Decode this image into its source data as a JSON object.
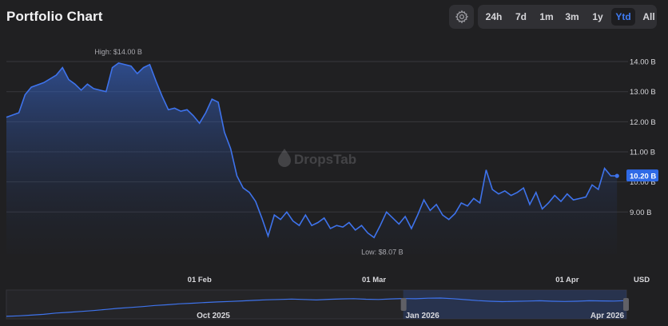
{
  "header": {
    "title": "Portfolio Chart",
    "settings_icon": "gear-icon",
    "ranges": [
      {
        "label": "24h",
        "active": false
      },
      {
        "label": "7d",
        "active": false
      },
      {
        "label": "1m",
        "active": false
      },
      {
        "label": "3m",
        "active": false
      },
      {
        "label": "1y",
        "active": false
      },
      {
        "label": "Ytd",
        "active": true
      },
      {
        "label": "All",
        "active": false
      }
    ]
  },
  "watermark": {
    "text": "DropsTab",
    "icon": "drop-icon"
  },
  "chart_data": {
    "type": "area",
    "currency": "USD",
    "y_unit": "B",
    "ylim": [
      7.6,
      14.4
    ],
    "y_ticks": [
      {
        "value": 9,
        "label": "9.00 B"
      },
      {
        "value": 10,
        "label": "10.00 B"
      },
      {
        "value": 11,
        "label": "11.00 B"
      },
      {
        "value": 12,
        "label": "12.00 B"
      },
      {
        "value": 13,
        "label": "13.00 B"
      },
      {
        "value": 14,
        "label": "14.00 B"
      }
    ],
    "x_ticks": [
      {
        "day": 31,
        "label": "01 Feb"
      },
      {
        "day": 59,
        "label": "01 Mar"
      },
      {
        "day": 90,
        "label": "01 Apr"
      }
    ],
    "x_range_days": [
      0,
      99
    ],
    "series": [
      {
        "values": [
          [
            0,
            12.15
          ],
          [
            2,
            12.3
          ],
          [
            3,
            12.9
          ],
          [
            4,
            13.15
          ],
          [
            6,
            13.3
          ],
          [
            8,
            13.55
          ],
          [
            9,
            13.8
          ],
          [
            10,
            13.4
          ],
          [
            11,
            13.25
          ],
          [
            12,
            13.05
          ],
          [
            13,
            13.25
          ],
          [
            14,
            13.1
          ],
          [
            16,
            13.0
          ],
          [
            17,
            13.8
          ],
          [
            18,
            13.95
          ],
          [
            20,
            13.85
          ],
          [
            21,
            13.6
          ],
          [
            22,
            13.8
          ],
          [
            23,
            13.9
          ],
          [
            24,
            13.35
          ],
          [
            25,
            12.85
          ],
          [
            26,
            12.4
          ],
          [
            27,
            12.45
          ],
          [
            28,
            12.35
          ],
          [
            29,
            12.4
          ],
          [
            30,
            12.2
          ],
          [
            31,
            11.95
          ],
          [
            32,
            12.3
          ],
          [
            33,
            12.75
          ],
          [
            34,
            12.65
          ],
          [
            35,
            11.65
          ],
          [
            36,
            11.1
          ],
          [
            37,
            10.2
          ],
          [
            38,
            9.8
          ],
          [
            39,
            9.65
          ],
          [
            40,
            9.35
          ],
          [
            41,
            8.8
          ],
          [
            42,
            8.2
          ],
          [
            43,
            8.9
          ],
          [
            44,
            8.75
          ],
          [
            45,
            9.0
          ],
          [
            46,
            8.7
          ],
          [
            47,
            8.55
          ],
          [
            48,
            8.9
          ],
          [
            49,
            8.55
          ],
          [
            50,
            8.65
          ],
          [
            51,
            8.8
          ],
          [
            52,
            8.45
          ],
          [
            53,
            8.55
          ],
          [
            54,
            8.5
          ],
          [
            55,
            8.65
          ],
          [
            56,
            8.4
          ],
          [
            57,
            8.55
          ],
          [
            58,
            8.3
          ],
          [
            59,
            8.15
          ],
          [
            60,
            8.55
          ],
          [
            61,
            9.0
          ],
          [
            62,
            8.8
          ],
          [
            63,
            8.6
          ],
          [
            64,
            8.85
          ],
          [
            65,
            8.45
          ],
          [
            66,
            8.9
          ],
          [
            67,
            9.4
          ],
          [
            68,
            9.05
          ],
          [
            69,
            9.25
          ],
          [
            70,
            8.9
          ],
          [
            71,
            8.75
          ],
          [
            72,
            8.95
          ],
          [
            73,
            9.3
          ],
          [
            74,
            9.2
          ],
          [
            75,
            9.45
          ],
          [
            76,
            9.3
          ],
          [
            77,
            10.4
          ],
          [
            78,
            9.75
          ],
          [
            79,
            9.6
          ],
          [
            80,
            9.7
          ],
          [
            81,
            9.55
          ],
          [
            82,
            9.65
          ],
          [
            83,
            9.8
          ],
          [
            84,
            9.25
          ],
          [
            85,
            9.65
          ],
          [
            86,
            9.1
          ],
          [
            87,
            9.3
          ],
          [
            88,
            9.55
          ],
          [
            89,
            9.35
          ],
          [
            90,
            9.6
          ],
          [
            91,
            9.4
          ],
          [
            92,
            9.45
          ],
          [
            93,
            9.5
          ],
          [
            94,
            9.9
          ],
          [
            95,
            9.75
          ],
          [
            96,
            10.45
          ],
          [
            97,
            10.2
          ],
          [
            98,
            10.2
          ]
        ]
      }
    ],
    "high": {
      "label": "High: $14.00 B",
      "value": 14.0
    },
    "low": {
      "label": "Low: $8.07 B",
      "value": 8.07
    },
    "current": {
      "label": "10.20 B",
      "value": 10.2
    }
  },
  "navigator": {
    "labels": [
      "Oct 2025",
      "Jan 2026",
      "Apr 2026"
    ],
    "selected_from": "Jan 2026",
    "selected_to": "Apr 2026",
    "values": [
      1.2,
      1.5,
      2.0,
      2.6,
      3.5,
      4.0,
      4.6,
      5.2,
      6.0,
      6.8,
      7.4,
      8.0,
      8.8,
      9.3,
      10.0,
      10.4,
      10.9,
      11.3,
      11.6,
      12.0,
      12.4,
      12.8,
      13.0,
      13.3,
      13.0,
      12.7,
      13.1,
      13.4,
      13.6,
      13.2,
      13.0,
      13.4,
      13.7,
      13.5,
      13.9,
      14.0,
      13.6,
      12.9,
      12.2,
      11.8,
      11.5,
      11.7,
      11.9,
      12.1,
      11.8,
      11.6,
      11.8,
      12.1,
      12.0,
      11.9,
      12.2
    ]
  }
}
